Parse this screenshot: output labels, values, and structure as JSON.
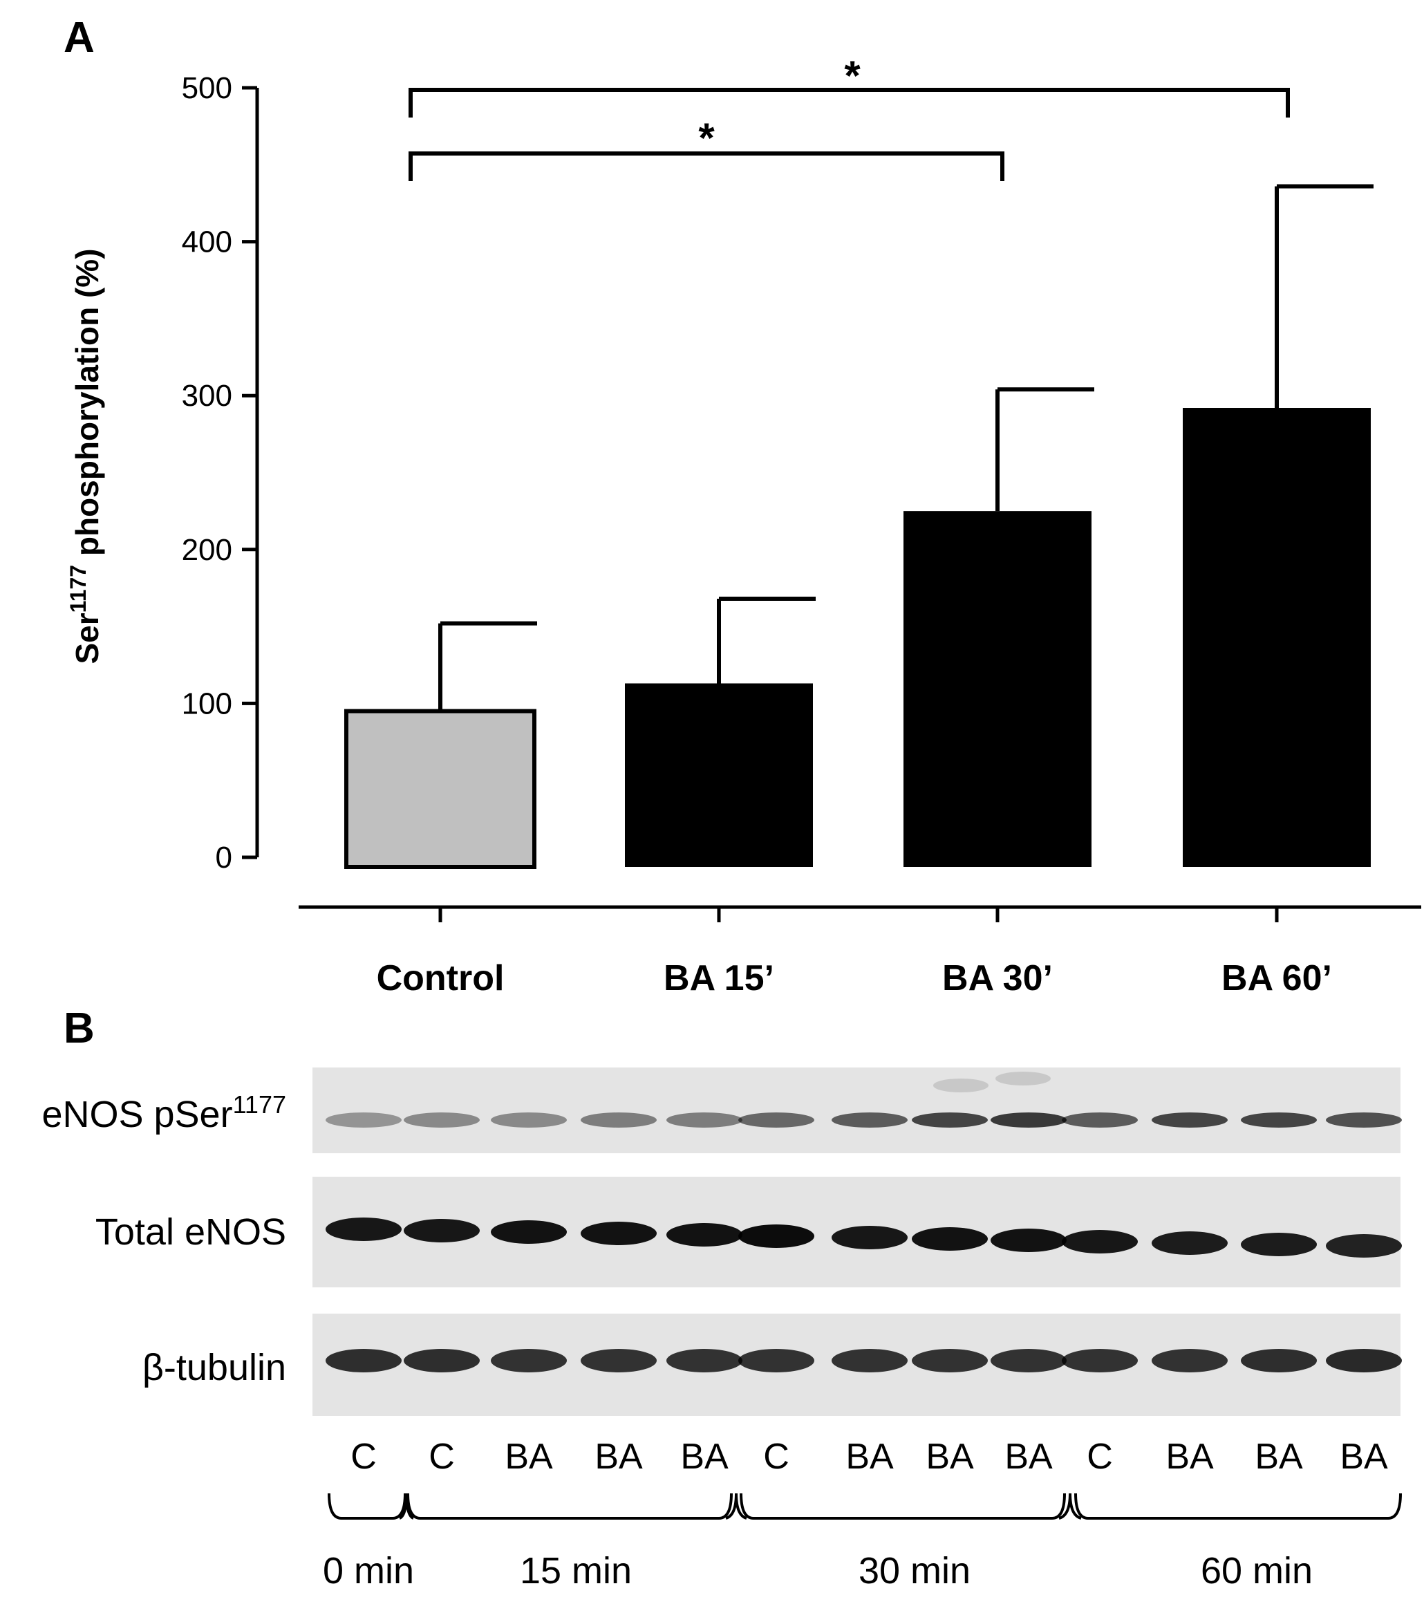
{
  "panel_a": {
    "letter": "A"
  },
  "panel_b": {
    "letter": "B"
  },
  "chart_data": {
    "type": "bar",
    "title": "",
    "xlabel": "",
    "ylabel": "Ser1177 phosphorylation (%)",
    "ylabel_parts": {
      "base": "Ser",
      "sup": "1177",
      "rest": " phosphorylation (%)"
    },
    "categories": [
      "Control",
      "BA 15’",
      "BA 30’",
      "BA 60’"
    ],
    "values": [
      95,
      113,
      225,
      292
    ],
    "error_upper": [
      152,
      168,
      304,
      436
    ],
    "bar_colors": [
      "#c0c0c0",
      "#000000",
      "#000000",
      "#000000"
    ],
    "ylim": [
      0,
      500
    ],
    "yticks": [
      0,
      100,
      200,
      300,
      400,
      500
    ],
    "grid": false,
    "significance": [
      {
        "from": "Control",
        "to": "BA 30’",
        "label": "*"
      },
      {
        "from": "Control",
        "to": "BA 60’",
        "label": "*"
      }
    ]
  },
  "blot": {
    "rows": [
      {
        "label_base": "eNOS pSer",
        "label_sup": "1177"
      },
      {
        "label_base": "Total eNOS",
        "label_sup": ""
      },
      {
        "label_base": "β-tubulin",
        "label_sup": ""
      }
    ],
    "lane_labels": [
      "C",
      "C",
      "BA",
      "BA",
      "BA",
      "C",
      "BA",
      "BA",
      "BA",
      "C",
      "BA",
      "BA",
      "BA"
    ],
    "time_groups": [
      "0 min",
      "15 min",
      "30 min",
      "60 min"
    ],
    "band_intensity": {
      "eNOS pSer1177": [
        0.35,
        0.4,
        0.4,
        0.45,
        0.45,
        0.55,
        0.6,
        0.7,
        0.75,
        0.6,
        0.7,
        0.7,
        0.65
      ],
      "Total eNOS": [
        0.9,
        0.9,
        0.92,
        0.92,
        0.92,
        0.95,
        0.9,
        0.92,
        0.92,
        0.9,
        0.88,
        0.88,
        0.85
      ],
      "β-tubulin": [
        0.8,
        0.8,
        0.78,
        0.78,
        0.78,
        0.78,
        0.78,
        0.78,
        0.78,
        0.78,
        0.78,
        0.8,
        0.82
      ]
    }
  }
}
